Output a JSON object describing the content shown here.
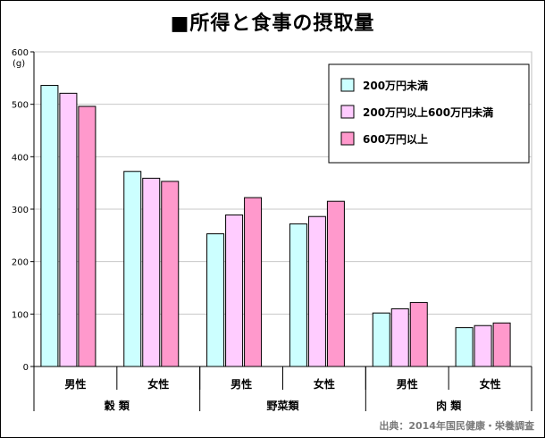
{
  "title": "■所得と食事の摂取量",
  "source": "出典：2014年国民健康・栄養調査",
  "chart_data": {
    "type": "bar",
    "title": "■所得と食事の摂取量",
    "ylabel": "(g)",
    "ylim": [
      0,
      600
    ],
    "yticks": [
      0,
      100,
      200,
      300,
      400,
      500,
      600
    ],
    "grid": true,
    "legend_position": "top-right",
    "groups": [
      "穀 類",
      "野菜類",
      "肉 類"
    ],
    "categories": [
      "男性",
      "女性",
      "男性",
      "女性",
      "男性",
      "女性"
    ],
    "series": [
      {
        "name": "200万円未満",
        "color": "#ccffff",
        "values": [
          536,
          372,
          253,
          272,
          102,
          74
        ]
      },
      {
        "name": "200万円以上600万円未満",
        "color": "#ffccff",
        "values": [
          521,
          359,
          289,
          286,
          110,
          78
        ]
      },
      {
        "name": "600万円以上",
        "color": "#ff99cc",
        "values": [
          496,
          353,
          322,
          315,
          122,
          83
        ]
      }
    ]
  }
}
